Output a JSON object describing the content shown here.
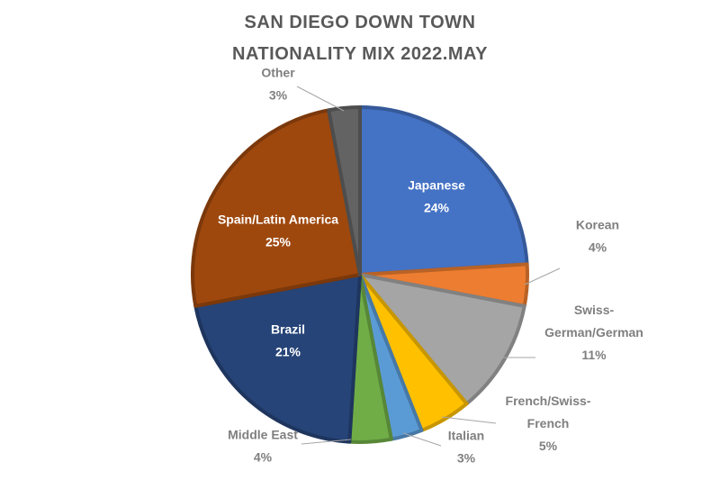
{
  "chart_data": {
    "type": "pie",
    "title_lines": [
      "SAN DIEGO DOWN TOWN",
      "NATIONALITY MIX 2022.MAY"
    ],
    "slices": [
      {
        "name": "Japanese",
        "label_lines": [
          "Japanese"
        ],
        "value": 24,
        "display": "24%",
        "color": "#4472C4"
      },
      {
        "name": "Korean",
        "label_lines": [
          "Korean"
        ],
        "value": 4,
        "display": "4%",
        "color": "#ED7D31"
      },
      {
        "name": "Swiss-German/German",
        "label_lines": [
          "Swiss-",
          "German/German"
        ],
        "value": 11,
        "display": "11%",
        "color": "#A5A5A5"
      },
      {
        "name": "French/Swiss-French",
        "label_lines": [
          "French/Swiss-",
          "French"
        ],
        "value": 5,
        "display": "5%",
        "color": "#FFC000"
      },
      {
        "name": "Italian",
        "label_lines": [
          "Italian"
        ],
        "value": 3,
        "display": "3%",
        "color": "#5B9BD5"
      },
      {
        "name": "Middle East",
        "label_lines": [
          "Middle East"
        ],
        "value": 4,
        "display": "4%",
        "color": "#70AD47"
      },
      {
        "name": "Brazil",
        "label_lines": [
          "Brazil"
        ],
        "value": 21,
        "display": "21%",
        "color": "#264478"
      },
      {
        "name": "Spain/Latin America",
        "label_lines": [
          "Spain/Latin America"
        ],
        "value": 25,
        "display": "25%",
        "color": "#9E480E"
      },
      {
        "name": "Other",
        "label_lines": [
          "Other"
        ],
        "value": 3,
        "display": "3%",
        "color": "#636363"
      }
    ],
    "legend": "none",
    "data_labels": "category name and percentage"
  }
}
